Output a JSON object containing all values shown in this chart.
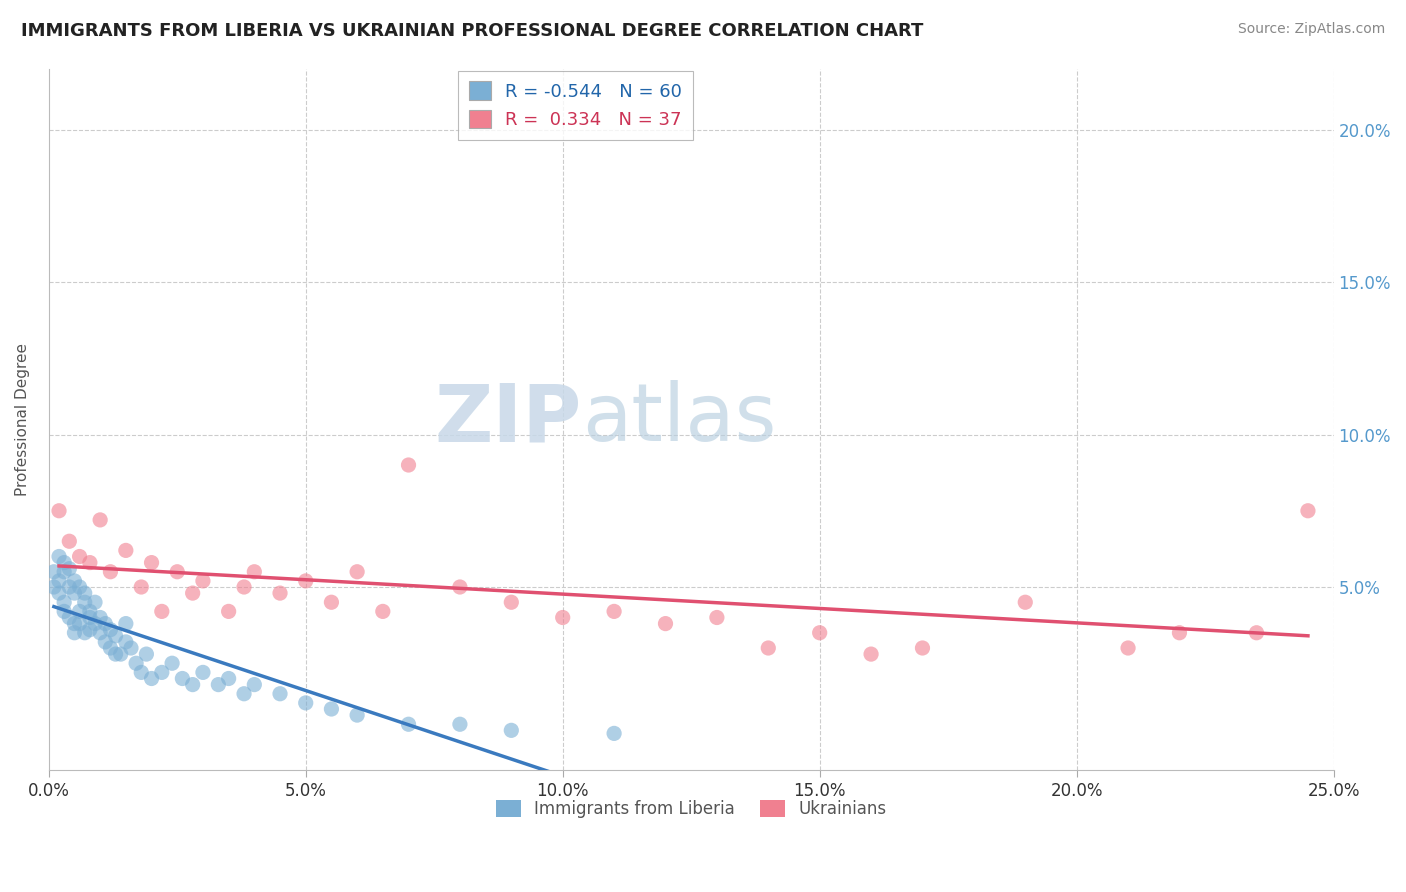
{
  "title": "IMMIGRANTS FROM LIBERIA VS UKRAINIAN PROFESSIONAL DEGREE CORRELATION CHART",
  "source": "Source: ZipAtlas.com",
  "ylabel": "Professional Degree",
  "watermark_zip": "ZIP",
  "watermark_atlas": "atlas",
  "liberia_color": "#7bafd4",
  "ukrainian_color": "#f08090",
  "liberia_trend_color": "#3a7abf",
  "ukrainian_trend_color": "#e05070",
  "background_color": "#ffffff",
  "grid_color": "#cccccc",
  "xmin": 0.0,
  "xmax": 0.25,
  "ymin": -0.01,
  "ymax": 0.22,
  "xticks": [
    0.0,
    0.05,
    0.1,
    0.15,
    0.2,
    0.25
  ],
  "yticks": [
    0.0,
    0.05,
    0.1,
    0.15,
    0.2
  ],
  "xtick_labels": [
    "0.0%",
    "5.0%",
    "10.0%",
    "15.0%",
    "20.0%",
    "25.0%"
  ],
  "right_ytick_labels": [
    "20.0%",
    "15.0%",
    "10.0%",
    "5.0%"
  ],
  "legend_r1": "R = -0.544",
  "legend_n1": "N = 60",
  "legend_r2": "R =  0.334",
  "legend_n2": "N = 37",
  "liberia_x": [
    0.001,
    0.001,
    0.002,
    0.002,
    0.002,
    0.003,
    0.003,
    0.003,
    0.003,
    0.004,
    0.004,
    0.004,
    0.005,
    0.005,
    0.005,
    0.005,
    0.006,
    0.006,
    0.006,
    0.007,
    0.007,
    0.007,
    0.008,
    0.008,
    0.008,
    0.009,
    0.009,
    0.01,
    0.01,
    0.011,
    0.011,
    0.012,
    0.012,
    0.013,
    0.013,
    0.014,
    0.015,
    0.015,
    0.016,
    0.017,
    0.018,
    0.019,
    0.02,
    0.022,
    0.024,
    0.026,
    0.028,
    0.03,
    0.033,
    0.035,
    0.038,
    0.04,
    0.045,
    0.05,
    0.055,
    0.06,
    0.07,
    0.08,
    0.09,
    0.11
  ],
  "liberia_y": [
    0.05,
    0.055,
    0.048,
    0.052,
    0.06,
    0.045,
    0.055,
    0.058,
    0.042,
    0.05,
    0.04,
    0.056,
    0.038,
    0.048,
    0.052,
    0.035,
    0.042,
    0.05,
    0.038,
    0.045,
    0.035,
    0.048,
    0.04,
    0.042,
    0.036,
    0.038,
    0.045,
    0.035,
    0.04,
    0.032,
    0.038,
    0.03,
    0.036,
    0.028,
    0.034,
    0.028,
    0.032,
    0.038,
    0.03,
    0.025,
    0.022,
    0.028,
    0.02,
    0.022,
    0.025,
    0.02,
    0.018,
    0.022,
    0.018,
    0.02,
    0.015,
    0.018,
    0.015,
    0.012,
    0.01,
    0.008,
    0.005,
    0.005,
    0.003,
    0.002
  ],
  "ukrainian_x": [
    0.002,
    0.004,
    0.006,
    0.008,
    0.01,
    0.012,
    0.015,
    0.018,
    0.02,
    0.022,
    0.025,
    0.028,
    0.03,
    0.035,
    0.038,
    0.04,
    0.045,
    0.05,
    0.055,
    0.06,
    0.065,
    0.07,
    0.08,
    0.09,
    0.1,
    0.11,
    0.12,
    0.13,
    0.14,
    0.15,
    0.16,
    0.17,
    0.19,
    0.21,
    0.22,
    0.235,
    0.245
  ],
  "ukrainian_y": [
    0.075,
    0.065,
    0.06,
    0.058,
    0.072,
    0.055,
    0.062,
    0.05,
    0.058,
    0.042,
    0.055,
    0.048,
    0.052,
    0.042,
    0.05,
    0.055,
    0.048,
    0.052,
    0.045,
    0.055,
    0.042,
    0.09,
    0.05,
    0.045,
    0.04,
    0.042,
    0.038,
    0.04,
    0.03,
    0.035,
    0.028,
    0.03,
    0.045,
    0.03,
    0.035,
    0.035,
    0.075
  ]
}
